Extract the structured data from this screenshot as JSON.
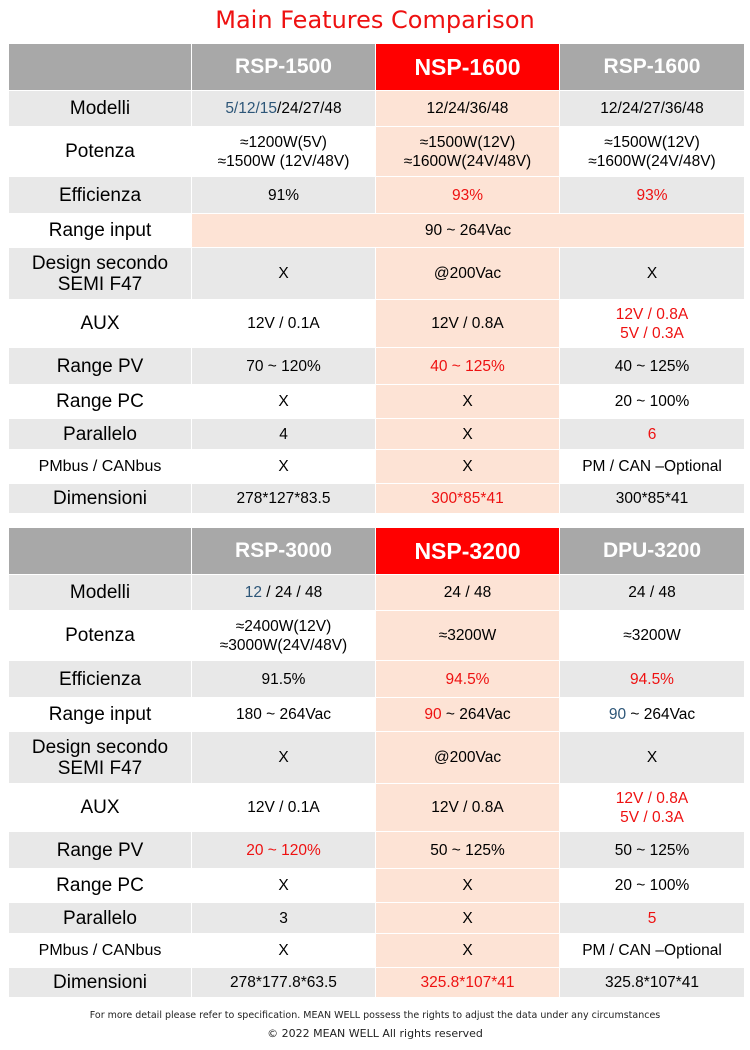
{
  "title": "Main Features Comparison",
  "colors": {
    "highlight_red": "#ff0000",
    "text_red": "#ee1111",
    "text_blue": "#2d5678",
    "header_gray": "#a8a8a8",
    "row_gray": "#e8e8e8",
    "peach": "#fde3d5"
  },
  "table1": {
    "headers": [
      "RSP-1500",
      "NSP-1600",
      "RSP-1600"
    ],
    "rows": {
      "modelli": {
        "label": "Modelli",
        "c1_blue": "5/12/15",
        "c1_rest": "/24/27/48",
        "c2": "12/24/36/48",
        "c3": "12/24/27/36/48"
      },
      "potenza": {
        "label": "Potenza",
        "c1_l1": "≈1200W(5V)",
        "c1_l2": "≈1500W (12V/48V)",
        "c2_l1": "≈1500W(12V)",
        "c2_l2": "≈1600W(24V/48V)",
        "c3_l1": "≈1500W(12V)",
        "c3_l2": "≈1600W(24V/48V)"
      },
      "efficienza": {
        "label": "Efficienza",
        "c1": "91%",
        "c2": "93%",
        "c3": "93%"
      },
      "range_input": {
        "label": "Range input",
        "value": "90 ~ 264Vac"
      },
      "semi": {
        "label_l1": "Design secondo",
        "label_l2": "SEMI F47",
        "c1": "X",
        "c2": "@200Vac",
        "c3": "X"
      },
      "aux": {
        "label": "AUX",
        "c1": "12V / 0.1A",
        "c2": "12V / 0.8A",
        "c3_l1": "12V / 0.8A",
        "c3_l2": "5V / 0.3A"
      },
      "range_pv": {
        "label": "Range PV",
        "c1": "70 ~ 120%",
        "c2": "40 ~ 125%",
        "c3": "40 ~ 125%"
      },
      "range_pc": {
        "label": "Range PC",
        "c1": "X",
        "c2": "X",
        "c3": "20 ~ 100%"
      },
      "parallelo": {
        "label": "Parallelo",
        "c1": "4",
        "c2": "X",
        "c3": "6"
      },
      "pmbus": {
        "label": "PMbus / CANbus",
        "c1": "X",
        "c2": "X",
        "c3": "PM / CAN –Optional"
      },
      "dimensioni": {
        "label": "Dimensioni",
        "c1": "278*127*83.5",
        "c2": "300*85*41",
        "c3": "300*85*41"
      }
    }
  },
  "table2": {
    "headers": [
      "RSP-3000",
      "NSP-3200",
      "DPU-3200"
    ],
    "rows": {
      "modelli": {
        "label": "Modelli",
        "c1_blue": "12",
        "c1_rest": " / 24 / 48",
        "c2": "24 / 48",
        "c3": "24 / 48"
      },
      "potenza": {
        "label": "Potenza",
        "c1_l1": "≈2400W(12V)",
        "c1_l2": "≈3000W(24V/48V)",
        "c2": "≈3200W",
        "c3": "≈3200W"
      },
      "efficienza": {
        "label": "Efficienza",
        "c1": "91.5%",
        "c2": "94.5%",
        "c3": "94.5%"
      },
      "range_input": {
        "label": "Range input",
        "c1": "180 ~ 264Vac",
        "c2_red": "90",
        "c2_rest": " ~ 264Vac",
        "c3_blue": "90",
        "c3_rest": " ~ 264Vac"
      },
      "semi": {
        "label_l1": "Design secondo",
        "label_l2": "SEMI F47",
        "c1": "X",
        "c2": "@200Vac",
        "c3": "X"
      },
      "aux": {
        "label": "AUX",
        "c1": "12V / 0.1A",
        "c2": "12V / 0.8A",
        "c3_l1": "12V / 0.8A",
        "c3_l2": "5V / 0.3A"
      },
      "range_pv": {
        "label": "Range PV",
        "c1": "20 ~ 120%",
        "c2": "50 ~ 125%",
        "c3": "50 ~ 125%"
      },
      "range_pc": {
        "label": "Range PC",
        "c1": "X",
        "c2": "X",
        "c3": "20 ~ 100%"
      },
      "parallelo": {
        "label": "Parallelo",
        "c1": "3",
        "c2": "X",
        "c3": "5"
      },
      "pmbus": {
        "label": "PMbus / CANbus",
        "c1": "X",
        "c2": "X",
        "c3": "PM / CAN –Optional"
      },
      "dimensioni": {
        "label": "Dimensioni",
        "c1": "278*177.8*63.5",
        "c2": "325.8*107*41",
        "c3": "325.8*107*41"
      }
    }
  },
  "footer": {
    "note": "For more detail please refer to specification. MEAN WELL possess the rights to adjust the data under any circumstances",
    "copyright": "© 2022 MEAN WELL All rights reserved"
  }
}
